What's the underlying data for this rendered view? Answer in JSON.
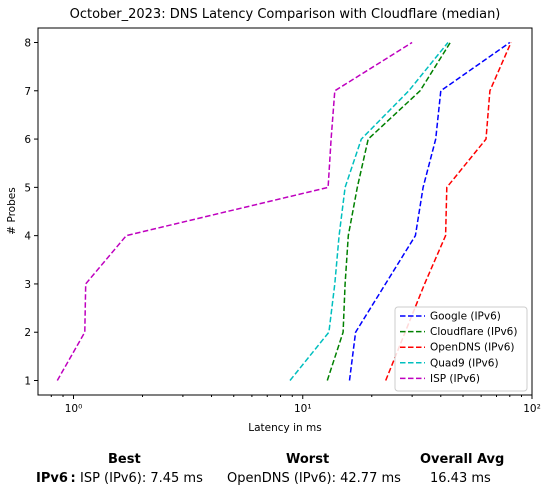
{
  "chart_data": {
    "type": "line",
    "title": "October_2023: DNS Latency Comparison with Cloudflare (median)",
    "xlabel": "Latency in ms",
    "ylabel": "# Probes",
    "xscale": "log",
    "xlim": [
      0.7,
      100
    ],
    "ylim": [
      0.7,
      8.3
    ],
    "xticks": [
      {
        "value": 1,
        "label": "10⁰"
      },
      {
        "value": 10,
        "label": "10¹"
      },
      {
        "value": 100,
        "label": "10²"
      }
    ],
    "yticks": [
      1,
      2,
      3,
      4,
      5,
      6,
      7,
      8
    ],
    "grid": false,
    "legend": "lower-right",
    "series": [
      {
        "name": "Google (IPv6)",
        "color": "#0000ff",
        "points": [
          [
            16.0,
            1
          ],
          [
            17.0,
            2
          ],
          [
            31.0,
            4
          ],
          [
            33.5,
            5
          ],
          [
            38.0,
            6
          ],
          [
            40.0,
            7
          ],
          [
            80.0,
            8
          ]
        ]
      },
      {
        "name": "Cloudflare (IPv6)",
        "color": "#008000",
        "points": [
          [
            12.8,
            1
          ],
          [
            15.0,
            2
          ],
          [
            15.3,
            3
          ],
          [
            15.8,
            4
          ],
          [
            17.3,
            5
          ],
          [
            19.3,
            6
          ],
          [
            32.5,
            7
          ],
          [
            44.0,
            8
          ]
        ]
      },
      {
        "name": "OpenDNS (IPv6)",
        "color": "#ff0000",
        "points": [
          [
            23.0,
            1
          ],
          [
            34.0,
            3
          ],
          [
            42.0,
            4
          ],
          [
            42.5,
            5
          ],
          [
            63.0,
            6
          ],
          [
            65.5,
            7
          ],
          [
            81.0,
            8
          ]
        ]
      },
      {
        "name": "Quad9 (IPv6)",
        "color": "#00bfbf",
        "points": [
          [
            8.8,
            1
          ],
          [
            13.0,
            2
          ],
          [
            13.8,
            3
          ],
          [
            14.4,
            4
          ],
          [
            15.3,
            5
          ],
          [
            18.0,
            6
          ],
          [
            29.0,
            7
          ],
          [
            43.0,
            8
          ]
        ]
      },
      {
        "name": "ISP (IPv6)",
        "color": "#bf00bf",
        "points": [
          [
            0.85,
            1
          ],
          [
            1.12,
            2
          ],
          [
            1.13,
            3
          ],
          [
            1.7,
            4
          ],
          [
            12.9,
            5
          ],
          [
            13.3,
            6
          ],
          [
            13.8,
            7
          ],
          [
            30.0,
            8
          ]
        ]
      }
    ]
  },
  "summary": {
    "headers": {
      "best": "Best",
      "worst": "Worst",
      "avg": "Overall Avg"
    },
    "row_label": "IPv6 :",
    "best": "ISP (IPv6): 7.45 ms",
    "worst": "OpenDNS (IPv6): 42.77 ms",
    "avg": "16.43 ms"
  }
}
